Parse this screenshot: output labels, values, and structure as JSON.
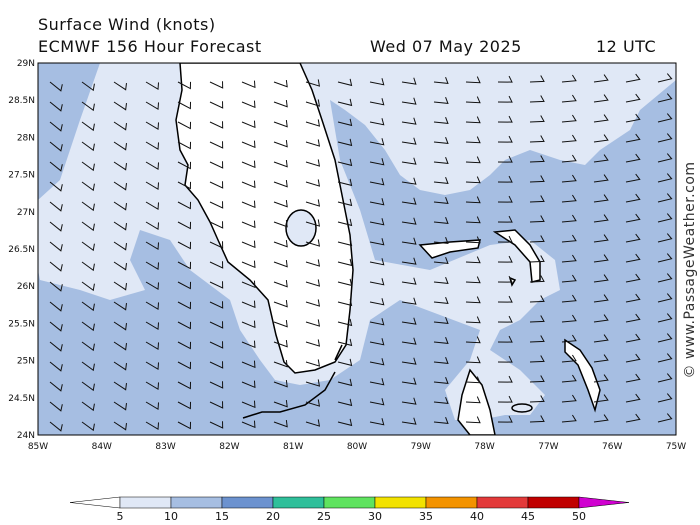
{
  "header": {
    "title": "Surface Wind (knots)",
    "model": "ECMWF 156 Hour Forecast",
    "date": "Wed 07 May 2025",
    "time": "12 UTC"
  },
  "map": {
    "latitudes": [
      "29N",
      "28.5N",
      "28N",
      "27.5N",
      "27N",
      "26.5N",
      "26N",
      "25.5N",
      "25N",
      "24.5N",
      "24N"
    ],
    "longitudes": [
      "85W",
      "84W",
      "83W",
      "82W",
      "81W",
      "80W",
      "79W",
      "78W",
      "77W",
      "76W",
      "75W"
    ],
    "watermark": "© www.PassageWeather.com"
  },
  "colorbar": {
    "labels": [
      "5",
      "10",
      "15",
      "20",
      "25",
      "30",
      "35",
      "40",
      "45",
      "50"
    ],
    "colors": [
      "#ffffff",
      "#e0e8f6",
      "#a6bee2",
      "#6c92cf",
      "#2fbf9a",
      "#5fe35f",
      "#f2e200",
      "#f39300",
      "#e33a3a",
      "#c00000",
      "#d000d0"
    ]
  }
}
